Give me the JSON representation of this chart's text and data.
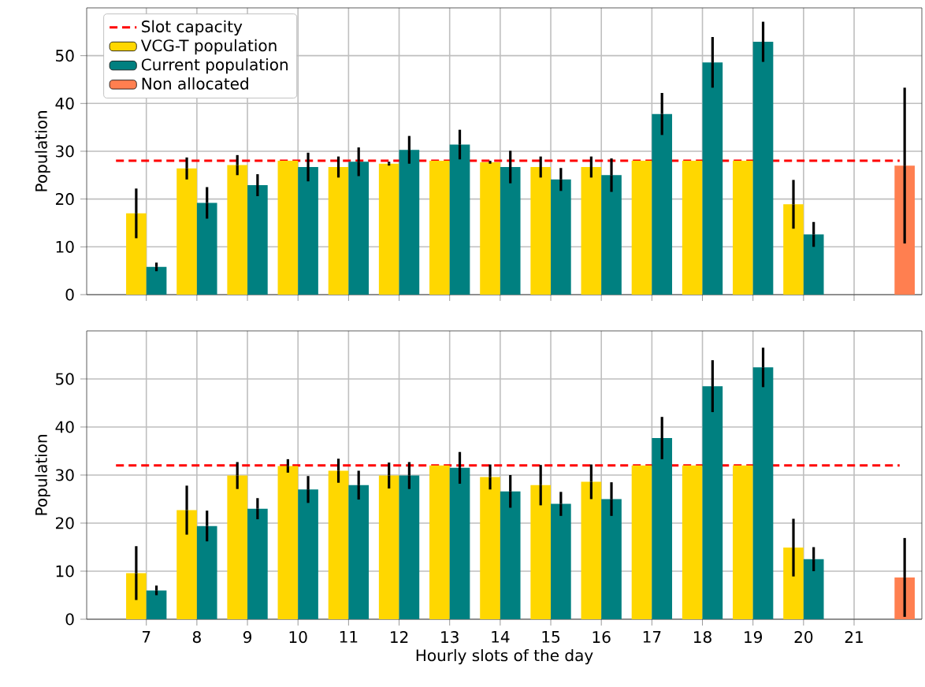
{
  "chart_data": [
    {
      "type": "bar",
      "ylabel": "Population",
      "categories": [
        "7",
        "8",
        "9",
        "10",
        "11",
        "12",
        "13",
        "14",
        "15",
        "16",
        "17",
        "18",
        "19",
        "20",
        "21",
        null
      ],
      "ylim": [
        0,
        60
      ],
      "yticks": [
        0,
        10,
        20,
        30,
        40,
        50
      ],
      "grid": true,
      "legend": "top left",
      "tick_labels": "y",
      "series": [
        {
          "name": "VCG-T population",
          "color": "#ffd700",
          "values": [
            17,
            26.4,
            27.1,
            28,
            26.7,
            27.4,
            28,
            27.7,
            26.7,
            26.7,
            28,
            28,
            28,
            18.9,
            0,
            null
          ],
          "errors": [
            5.2,
            2.3,
            2.1,
            null,
            2.2,
            0.4,
            null,
            0.3,
            2.2,
            2.2,
            null,
            null,
            null,
            5.1,
            null,
            null
          ]
        },
        {
          "name": "Current population",
          "color": "#008080",
          "values": [
            5.8,
            19.2,
            22.9,
            26.7,
            27.8,
            30.3,
            31.4,
            26.7,
            24.1,
            25.0,
            37.8,
            48.6,
            52.9,
            12.6,
            0,
            null
          ],
          "errors": [
            0.9,
            3.3,
            2.3,
            3.0,
            3.0,
            2.9,
            3.1,
            3.4,
            2.4,
            3.5,
            4.4,
            5.3,
            4.2,
            2.6,
            null,
            null
          ]
        },
        {
          "name": "Non allocated",
          "color": "#ff7f50",
          "values": [
            null,
            null,
            null,
            null,
            null,
            null,
            null,
            null,
            null,
            null,
            null,
            null,
            null,
            null,
            null,
            27.0
          ],
          "errors": [
            null,
            null,
            null,
            null,
            null,
            null,
            null,
            null,
            null,
            null,
            null,
            null,
            null,
            null,
            null,
            16.3
          ]
        }
      ],
      "ref_lines": [
        {
          "axis": "y",
          "value": 28,
          "label": "Slot capacity",
          "color": "#ff0000",
          "line_style": "dashed"
        }
      ]
    },
    {
      "type": "bar",
      "xlabel": "Hourly slots of the day",
      "ylabel": "Population",
      "categories": [
        "7",
        "8",
        "9",
        "10",
        "11",
        "12",
        "13",
        "14",
        "15",
        "16",
        "17",
        "18",
        "19",
        "20",
        "21",
        null
      ],
      "ylim": [
        0,
        60
      ],
      "yticks": [
        0,
        10,
        20,
        30,
        40,
        50
      ],
      "grid": true,
      "series": [
        {
          "color": "#ffd700",
          "values": [
            9.6,
            22.7,
            29.9,
            31.9,
            30.9,
            29.9,
            32,
            29.6,
            27.9,
            28.6,
            32,
            32,
            32,
            14.9,
            0,
            null
          ],
          "errors": [
            5.6,
            5.1,
            2.8,
            1.4,
            2.5,
            2.7,
            null,
            2.6,
            4.2,
            3.6,
            null,
            null,
            null,
            6.0,
            null,
            null
          ]
        },
        {
          "color": "#008080",
          "values": [
            6.0,
            19.4,
            23.0,
            27.0,
            27.9,
            29.9,
            31.5,
            26.6,
            24.0,
            25.0,
            37.7,
            48.5,
            52.4,
            12.5,
            0,
            null
          ],
          "errors": [
            1.0,
            3.2,
            2.2,
            2.8,
            3.0,
            2.8,
            3.3,
            3.4,
            2.5,
            3.5,
            4.4,
            5.4,
            4.1,
            2.5,
            null,
            null
          ]
        },
        {
          "color": "#ff7f50",
          "values": [
            null,
            null,
            null,
            null,
            null,
            null,
            null,
            null,
            null,
            null,
            null,
            null,
            null,
            null,
            null,
            8.7
          ],
          "errors": [
            null,
            null,
            null,
            null,
            null,
            null,
            null,
            null,
            null,
            null,
            null,
            null,
            null,
            null,
            null,
            8.2
          ]
        }
      ],
      "ref_lines": [
        {
          "axis": "y",
          "value": 32,
          "color": "#ff0000",
          "line_style": "dashed"
        }
      ]
    }
  ]
}
